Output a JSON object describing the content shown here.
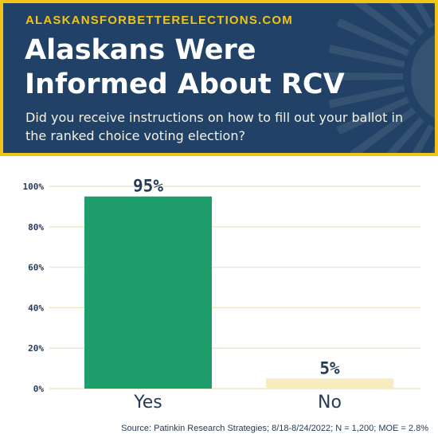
{
  "header": {
    "site": "ALASKANSFORBETTERELECTIONS.COM",
    "title_line1": "Alaskans Were",
    "title_line2": "Informed About RCV",
    "subtitle": "Did you receive instructions on how to fill out your ballot in the ranked choice voting election?"
  },
  "colors": {
    "navy": "#214167",
    "gold": "#f2c418",
    "green": "#1e9e6b",
    "cream": "#f7ebc0"
  },
  "chart_data": {
    "type": "bar",
    "categories": [
      "Yes",
      "No"
    ],
    "values": [
      95,
      5
    ],
    "value_labels": [
      "95%",
      "5%"
    ],
    "bar_colors": [
      "#1e9e6b",
      "#f7ebc0"
    ],
    "yticks": [
      "0%",
      "20%",
      "40%",
      "60%",
      "80%",
      "100%"
    ],
    "ylim": [
      0,
      100
    ],
    "grid": true,
    "legend": "none"
  },
  "source": "Source: Patinkin Research Strategies; 8/18-8/24/2022; N = 1,200; MOE = 2.8%"
}
